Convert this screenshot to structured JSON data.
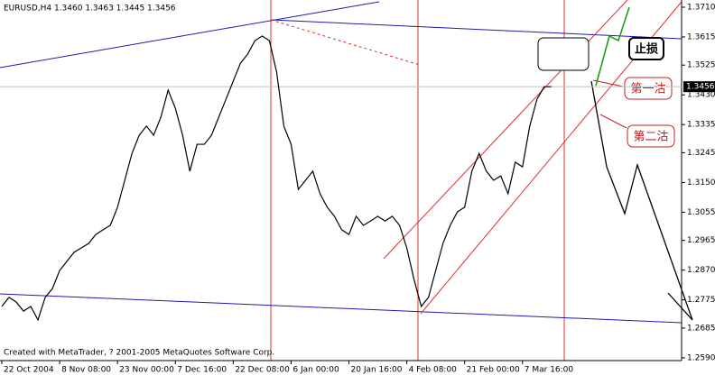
{
  "chart_data": {
    "type": "line",
    "title": "EURUSD,H4  1.3460 1.3463 1.3445 1.3456",
    "footer": "Created with MetaTrader, ? 2001-2005 MetaQuotes Software Corp.",
    "color": "#000000",
    "x": [
      0,
      4,
      8,
      12,
      16,
      20,
      24,
      28,
      32,
      36,
      40,
      44,
      48,
      52,
      56,
      60,
      64,
      68,
      72,
      76,
      80,
      84,
      88,
      92,
      96,
      100,
      104,
      108,
      112,
      116,
      120,
      124,
      128,
      132,
      136,
      140,
      144,
      148,
      152,
      156,
      160,
      164,
      168,
      172,
      176,
      180,
      184,
      188,
      192,
      196,
      200,
      204,
      208,
      212,
      216,
      220,
      224,
      228,
      232,
      236,
      240,
      244,
      248,
      252,
      256,
      260,
      264,
      268,
      272,
      276,
      280,
      284,
      288,
      292,
      296,
      300,
      304
    ],
    "values": [
      1.2754,
      1.2783,
      1.2768,
      1.2739,
      1.2754,
      1.2711,
      1.2783,
      1.2811,
      1.2869,
      1.2898,
      1.2927,
      1.2941,
      1.2955,
      1.2984,
      1.2999,
      1.3013,
      1.3071,
      1.3157,
      1.3243,
      1.3301,
      1.333,
      1.3301,
      1.3359,
      1.3445,
      1.3387,
      1.3301,
      1.3186,
      1.3272,
      1.3272,
      1.3301,
      1.3359,
      1.3416,
      1.3474,
      1.3531,
      1.356,
      1.3603,
      1.3618,
      1.3603,
      1.3503,
      1.333,
      1.3272,
      1.3128,
      1.3157,
      1.3186,
      1.3114,
      1.3071,
      1.3042,
      1.2999,
      1.2984,
      1.3042,
      1.3013,
      1.3027,
      1.3042,
      1.3027,
      1.3042,
      1.3013,
      1.2941,
      1.284,
      1.2754,
      1.2783,
      1.2869,
      1.2955,
      1.3013,
      1.3056,
      1.3071,
      1.3186,
      1.3243,
      1.3186,
      1.3157,
      1.3171,
      1.3114,
      1.3215,
      1.32,
      1.333,
      1.3416,
      1.3456,
      1.3456
    ],
    "xlim": [
      -1,
      376
    ],
    "xticks": [
      {
        "value": 0,
        "label": "22 Oct 2004"
      },
      {
        "value": 32,
        "label": "8 Nov 08:00"
      },
      {
        "value": 64,
        "label": "23 Nov 00:00"
      },
      {
        "value": 96,
        "label": "7 Dec 16:00"
      },
      {
        "value": 128,
        "label": "22 Dec 08:00"
      },
      {
        "value": 160,
        "label": "6 Jan 00:00"
      },
      {
        "value": 192,
        "label": "20 Jan 16:00"
      },
      {
        "value": 224,
        "label": "4 Feb 08:00"
      },
      {
        "value": 256,
        "label": "21 Feb 00:00"
      },
      {
        "value": 288,
        "label": "7 Mar 16:00"
      }
    ],
    "ylim": [
      1.2581,
      1.3733
    ],
    "yticks": [
      {
        "value": 1.371,
        "label": "1.3710"
      },
      {
        "value": 1.3615,
        "label": "1.3615"
      },
      {
        "value": 1.3525,
        "label": "1.3525"
      },
      {
        "value": 1.343,
        "label": "1.3430"
      },
      {
        "value": 1.3335,
        "label": "1.3335"
      },
      {
        "value": 1.3245,
        "label": "1.3245"
      },
      {
        "value": 1.315,
        "label": "1.3150"
      },
      {
        "value": 1.3055,
        "label": "1.3055"
      },
      {
        "value": 1.2965,
        "label": "1.2965"
      },
      {
        "value": 1.287,
        "label": "1.2870"
      },
      {
        "value": 1.2775,
        "label": "1.2775"
      },
      {
        "value": 1.2685,
        "label": "1.2685"
      },
      {
        "value": 1.259,
        "label": "1.2590"
      }
    ],
    "last_price": {
      "value": 1.3456,
      "label": "1.3456"
    },
    "annotations": [
      "止损",
      "第一沽",
      "第二沽"
    ]
  }
}
